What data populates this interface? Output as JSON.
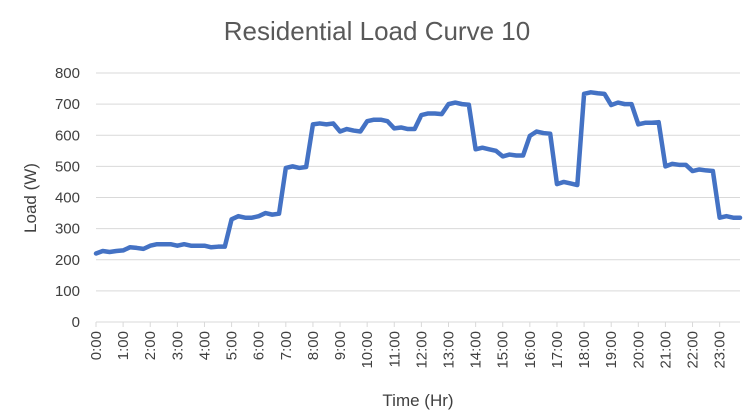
{
  "chart_data": {
    "type": "line",
    "title": "Residential Load Curve 10",
    "xlabel": "Time (Hr)",
    "ylabel": "Load (W)",
    "ylim": [
      0,
      800
    ],
    "yticks": [
      0,
      100,
      200,
      300,
      400,
      500,
      600,
      700,
      800
    ],
    "xlim": [
      0,
      23.75
    ],
    "xtick_labels": [
      "0:00",
      "1:00",
      "2:00",
      "3:00",
      "4:00",
      "5:00",
      "6:00",
      "7:00",
      "8:00",
      "9:00",
      "10:00",
      "11:00",
      "12:00",
      "13:00",
      "14:00",
      "15:00",
      "16:00",
      "17:00",
      "18:00",
      "19:00",
      "20:00",
      "21:00",
      "22:00",
      "23:00"
    ],
    "grid": true,
    "legend": "none",
    "color": "#4472c4",
    "x_step_hours": 0.25,
    "values": [
      220,
      228,
      225,
      228,
      230,
      240,
      238,
      235,
      245,
      250,
      250,
      250,
      245,
      250,
      245,
      245,
      245,
      240,
      242,
      242,
      330,
      340,
      335,
      335,
      340,
      350,
      345,
      348,
      495,
      500,
      495,
      498,
      635,
      638,
      635,
      638,
      612,
      620,
      615,
      612,
      645,
      650,
      650,
      645,
      622,
      625,
      620,
      620,
      665,
      670,
      670,
      668,
      700,
      705,
      700,
      698,
      555,
      560,
      555,
      550,
      532,
      538,
      535,
      535,
      598,
      612,
      607,
      605,
      443,
      450,
      445,
      440,
      733,
      738,
      735,
      733,
      697,
      705,
      700,
      700,
      635,
      640,
      640,
      642,
      500,
      508,
      505,
      505,
      485,
      490,
      487,
      485,
      335,
      340,
      335,
      335
    ]
  }
}
